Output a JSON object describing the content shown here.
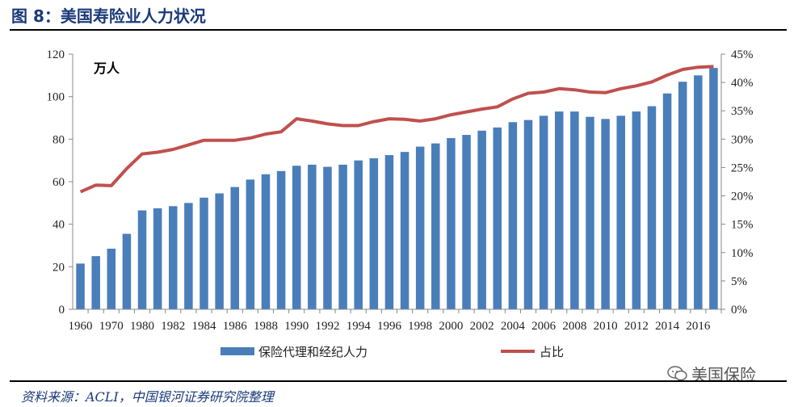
{
  "figure_title": "图 8：美国寿险业人力状况",
  "source_note": "资料来源：ACLI，中国银河证券研究院整理",
  "watermark": "美国保险",
  "colors": {
    "bar": "#4a7ebb",
    "line": "#c0504d",
    "title": "#1a3a78"
  },
  "chart_data": {
    "type": "bar",
    "title": "",
    "unit_label": "万人",
    "years": [
      1960,
      1965,
      1970,
      1975,
      1980,
      1981,
      1982,
      1983,
      1984,
      1985,
      1986,
      1987,
      1988,
      1989,
      1990,
      1991,
      1992,
      1993,
      1994,
      1995,
      1996,
      1997,
      1998,
      1999,
      2000,
      2001,
      2002,
      2003,
      2004,
      2005,
      2006,
      2007,
      2008,
      2009,
      2010,
      2011,
      2012,
      2013,
      2014,
      2015,
      2016,
      2017
    ],
    "x_tick_labels": [
      "1960",
      "1970",
      "1980",
      "1982",
      "1984",
      "1986",
      "1988",
      "1990",
      "1992",
      "1994",
      "1996",
      "1998",
      "2000",
      "2002",
      "2004",
      "2006",
      "2008",
      "2010",
      "2012",
      "2014",
      "2016"
    ],
    "y_left": {
      "lim": [
        0,
        120
      ],
      "ticks": [
        "0",
        "20",
        "40",
        "60",
        "80",
        "100",
        "120"
      ]
    },
    "y_right": {
      "lim": [
        0,
        45
      ],
      "ticks": [
        "0%",
        "5%",
        "10%",
        "15%",
        "20%",
        "25%",
        "30%",
        "35%",
        "40%",
        "45%"
      ]
    },
    "series": [
      {
        "name": "保险代理和经纪人力",
        "type": "bar",
        "axis": "left",
        "values": [
          21.5,
          25,
          28.5,
          35.5,
          46.5,
          47.5,
          48.5,
          50,
          52.5,
          54.5,
          57.5,
          61,
          63.5,
          65,
          67.5,
          68,
          67,
          68,
          70,
          71,
          72.5,
          74,
          76.5,
          78,
          80.5,
          82,
          84,
          85.5,
          88,
          89,
          91,
          93,
          93,
          90.5,
          89.5,
          91,
          93,
          95.5,
          101.5,
          107,
          110,
          113.5
        ]
      },
      {
        "name": "占比",
        "type": "line",
        "axis": "right",
        "values": [
          20.7,
          21.9,
          21.8,
          24.8,
          27.4,
          27.7,
          28.2,
          29.0,
          29.8,
          29.8,
          29.8,
          30.2,
          30.9,
          31.3,
          33.6,
          33.2,
          32.7,
          32.4,
          32.4,
          33.1,
          33.6,
          33.5,
          33.2,
          33.6,
          34.3,
          34.8,
          35.3,
          35.7,
          37.1,
          38.1,
          38.3,
          38.9,
          38.7,
          38.3,
          38.2,
          38.9,
          39.4,
          40.1,
          41.3,
          42.3,
          42.7,
          42.8
        ]
      }
    ]
  }
}
